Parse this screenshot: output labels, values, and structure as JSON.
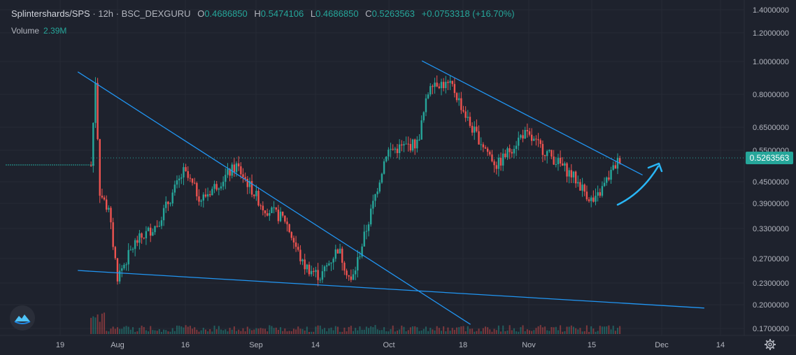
{
  "legend": {
    "symbol": "Splintershards/SPS",
    "interval": "12h",
    "exchange": "BSC_DEXGURU",
    "o_label": "O",
    "o": "0.4686850",
    "h_label": "H",
    "h": "0.5474106",
    "l_label": "L",
    "l": "0.4686850",
    "c_label": "C",
    "c": "0.5263563",
    "change": "+0.0753318 (+16.70%)"
  },
  "volume": {
    "label": "Volume",
    "value": "2.39M"
  },
  "colors": {
    "up": "#26a69a",
    "down": "#ef5350",
    "trendline": "#2196f3",
    "annotation": "#29b6f6",
    "background": "#1e222d"
  },
  "icons": {
    "logo": "dexguru-logo-icon",
    "settings": "gear-icon"
  },
  "chart_data": {
    "type": "candlestick",
    "y_scale": "log",
    "y_tick_labels": [
      "1.4000000",
      "1.2000000",
      "1.0000000",
      "0.8000000",
      "0.6500000",
      "0.5500000",
      "0.4500000",
      "0.3900000",
      "0.3300000",
      "0.2700000",
      "0.2300000",
      "0.2000000",
      "0.1700000"
    ],
    "x_tick_labels": [
      "19",
      "Aug",
      "16",
      "Sep",
      "14",
      "Oct",
      "18",
      "Nov",
      "15",
      "Dec",
      "14"
    ],
    "last_price": "0.5263563",
    "approx_close_path": [
      [
        "Jul 26",
        0.5
      ],
      [
        "Jul 27",
        0.88
      ],
      [
        "Jul 28",
        0.42
      ],
      [
        "Jul 30",
        0.37
      ],
      [
        "Aug 1",
        0.24
      ],
      [
        "Aug 5",
        0.3
      ],
      [
        "Aug 10",
        0.34
      ],
      [
        "Aug 16",
        0.48
      ],
      [
        "Aug 20",
        0.4
      ],
      [
        "Aug 28",
        0.5
      ],
      [
        "Sep 3",
        0.38
      ],
      [
        "Sep 8",
        0.35
      ],
      [
        "Sep 12",
        0.26
      ],
      [
        "Sep 16",
        0.24
      ],
      [
        "Sep 20",
        0.29
      ],
      [
        "Sep 23",
        0.23
      ],
      [
        "Sep 27",
        0.35
      ],
      [
        "Oct 1",
        0.55
      ],
      [
        "Oct 8",
        0.58
      ],
      [
        "Oct 11",
        0.88
      ],
      [
        "Oct 16",
        0.84
      ],
      [
        "Oct 20",
        0.65
      ],
      [
        "Oct 26",
        0.5
      ],
      [
        "Nov 1",
        0.62
      ],
      [
        "Nov 6",
        0.55
      ],
      [
        "Nov 12",
        0.47
      ],
      [
        "Nov 17",
        0.39
      ],
      [
        "Nov 21",
        0.48
      ],
      [
        "Nov 23",
        0.53
      ]
    ],
    "trendlines": [
      {
        "from": [
          "Jul 23",
          0.93
        ],
        "to": [
          "Oct 20",
          0.175
        ]
      },
      {
        "from": [
          "Jul 23",
          0.25
        ],
        "to": [
          "Dec 12",
          0.195
        ]
      },
      {
        "from": [
          "Oct 9",
          1.0
        ],
        "to": [
          "Nov 28",
          0.47
        ]
      }
    ]
  }
}
